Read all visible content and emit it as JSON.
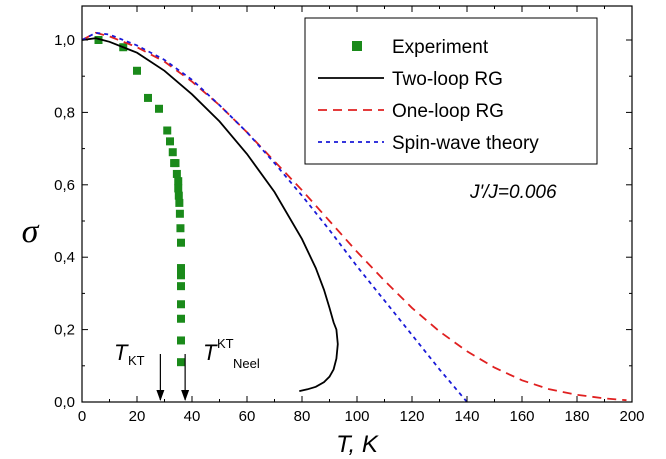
{
  "chart_data": {
    "type": "line",
    "xlabel": "T, K",
    "ylabel": "σ",
    "xlim": [
      0,
      200
    ],
    "ylim": [
      0,
      1.0
    ],
    "xticks": [
      "0",
      "20",
      "40",
      "60",
      "80",
      "100",
      "120",
      "140",
      "160",
      "180",
      "200"
    ],
    "yticks": [
      "0,0",
      "0,2",
      "0,4",
      "0,6",
      "0,8",
      "1,0"
    ],
    "grid": false,
    "legend_position": "top-right",
    "annotation": "J'/J=0.006",
    "series": [
      {
        "name": "Experiment",
        "style": "square-markers",
        "color": "#1a8a1a",
        "x": [
          6,
          15,
          20,
          24,
          28,
          31,
          32,
          33,
          33.5,
          34,
          34.5,
          35,
          35,
          35.2,
          35.4,
          35.6,
          35.8,
          36,
          36,
          36,
          36,
          36,
          36,
          36,
          36
        ],
        "y": [
          1.0,
          0.98,
          0.915,
          0.84,
          0.81,
          0.75,
          0.72,
          0.69,
          0.66,
          0.66,
          0.63,
          0.61,
          0.59,
          0.57,
          0.55,
          0.52,
          0.48,
          0.44,
          0.37,
          0.35,
          0.32,
          0.27,
          0.23,
          0.17,
          0.11
        ]
      },
      {
        "name": "Two-loop RG",
        "style": "solid",
        "color": "#000000",
        "x": [
          0,
          5,
          10,
          20,
          30,
          40,
          50,
          60,
          70,
          80,
          85,
          88,
          90,
          91.5,
          92.5,
          93,
          92.5,
          91.5,
          90,
          88,
          85,
          82,
          79
        ],
        "y": [
          1.0,
          1.005,
          0.995,
          0.965,
          0.915,
          0.85,
          0.775,
          0.685,
          0.58,
          0.45,
          0.37,
          0.31,
          0.26,
          0.22,
          0.2,
          0.16,
          0.12,
          0.09,
          0.07,
          0.055,
          0.042,
          0.035,
          0.03
        ]
      },
      {
        "name": "One-loop RG",
        "style": "dashed",
        "color": "#e02020",
        "x": [
          0,
          5,
          10,
          20,
          30,
          40,
          50,
          60,
          70,
          80,
          90,
          100,
          110,
          120,
          130,
          140,
          150,
          160,
          170,
          180,
          190,
          198
        ],
        "y": [
          1.0,
          1.02,
          1.01,
          0.98,
          0.94,
          0.885,
          0.82,
          0.745,
          0.665,
          0.585,
          0.5,
          0.415,
          0.335,
          0.26,
          0.195,
          0.14,
          0.095,
          0.06,
          0.035,
          0.02,
          0.01,
          0.005
        ]
      },
      {
        "name": "Spin-wave theory",
        "style": "dotted",
        "color": "#1a1ad8",
        "x": [
          0,
          5,
          10,
          20,
          30,
          40,
          50,
          60,
          70,
          80,
          90,
          100,
          110,
          120,
          130,
          135,
          140
        ],
        "y": [
          1.0,
          1.02,
          1.015,
          0.985,
          0.945,
          0.89,
          0.82,
          0.745,
          0.66,
          0.57,
          0.475,
          0.375,
          0.28,
          0.185,
          0.09,
          0.045,
          0.0
        ]
      }
    ],
    "markers": [
      {
        "label": "T",
        "sub": "KT",
        "sup": "",
        "x": 28.5
      },
      {
        "label": "T",
        "sub": "Neel",
        "sup": "KT",
        "x": 37.5
      }
    ]
  }
}
